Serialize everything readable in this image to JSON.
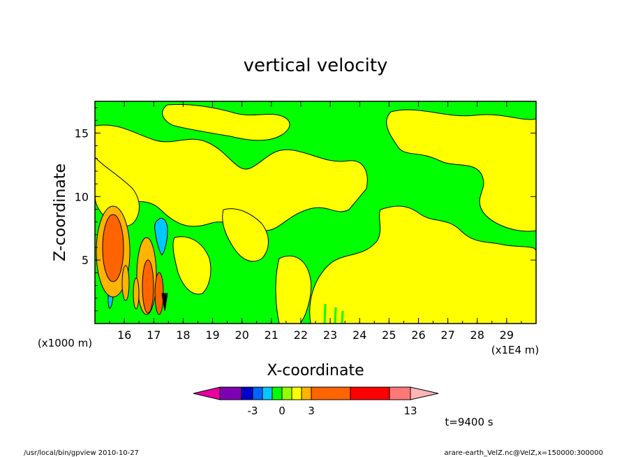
{
  "chart_data": {
    "type": "heatmap",
    "title": "vertical velocity",
    "xlabel": "X-coordinate",
    "ylabel": "Z-coordinate",
    "x_unit": "(x1E4 m)",
    "y_unit": "(x1000 m)",
    "xlim": [
      15.0,
      30.0
    ],
    "ylim": [
      0.0,
      17.5
    ],
    "x_ticks": [
      "16",
      "17",
      "18",
      "19",
      "20",
      "21",
      "22",
      "23",
      "24",
      "25",
      "26",
      "27",
      "28",
      "29"
    ],
    "y_ticks": [
      "5",
      "10",
      "15"
    ],
    "colorbar": {
      "colors": [
        "#e600a0",
        "#7d00b4",
        "#0000c8",
        "#0064ff",
        "#00c8ff",
        "#00ff00",
        "#96ff00",
        "#ffff00",
        "#ffb400",
        "#ff6400",
        "#ff0000",
        "#ff7878",
        "#ffb4b4"
      ],
      "tick_labels": [
        "-3",
        "0",
        "3",
        "13"
      ]
    },
    "time_label": "t=9400 s",
    "series": [
      {
        "name": "",
        "values": []
      }
    ]
  },
  "footer": {
    "left": "/usr/local/bin/gpview  2010-10-27",
    "right": "arare-earth_VelZ.nc@VelZ,x=150000:300000"
  }
}
